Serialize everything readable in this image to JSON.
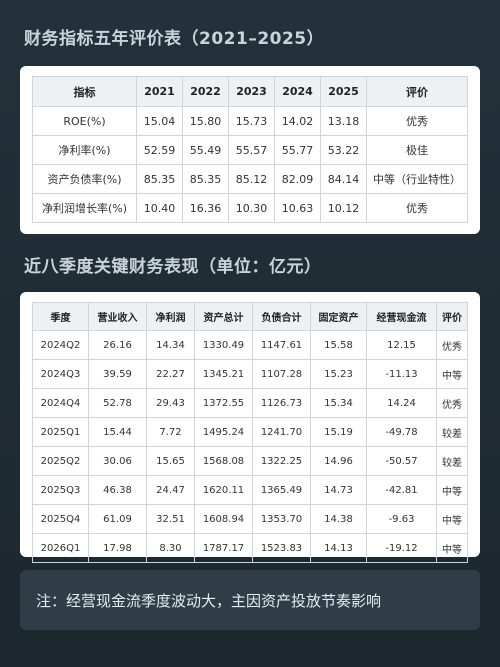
{
  "section1": {
    "title": "财务指标五年评价表（2021–2025）",
    "headers": [
      "指标",
      "2021",
      "2022",
      "2023",
      "2024",
      "2025",
      "评价"
    ],
    "rows": [
      [
        "ROE(%)",
        "15.04",
        "15.80",
        "15.73",
        "14.02",
        "13.18",
        "优秀"
      ],
      [
        "净利率(%)",
        "52.59",
        "55.49",
        "55.57",
        "55.77",
        "53.22",
        "极佳"
      ],
      [
        "资产负债率(%)",
        "85.35",
        "85.35",
        "85.12",
        "82.09",
        "84.14",
        "中等（行业特性）"
      ],
      [
        "净利润增长率(%)",
        "10.40",
        "16.36",
        "10.30",
        "10.63",
        "10.12",
        "优秀"
      ]
    ]
  },
  "section2": {
    "title": "近八季度关键财务表现（单位：亿元）",
    "headers": [
      "季度",
      "营业收入",
      "净利润",
      "资产总计",
      "负债合计",
      "固定资产",
      "经营现金流",
      "评价"
    ],
    "rows": [
      [
        "2024Q2",
        "26.16",
        "14.34",
        "1330.49",
        "1147.61",
        "15.58",
        "12.15",
        "优秀"
      ],
      [
        "2024Q3",
        "39.59",
        "22.27",
        "1345.21",
        "1107.28",
        "15.23",
        "-11.13",
        "中等"
      ],
      [
        "2024Q4",
        "52.78",
        "29.43",
        "1372.55",
        "1126.73",
        "15.34",
        "14.24",
        "优秀"
      ],
      [
        "2025Q1",
        "15.44",
        "7.72",
        "1495.24",
        "1241.70",
        "15.19",
        "-49.78",
        "较差"
      ],
      [
        "2025Q2",
        "30.06",
        "15.65",
        "1568.08",
        "1322.25",
        "14.96",
        "-50.57",
        "较差"
      ],
      [
        "2025Q3",
        "46.38",
        "24.47",
        "1620.11",
        "1365.49",
        "14.73",
        "-42.81",
        "中等"
      ],
      [
        "2025Q4",
        "61.09",
        "32.51",
        "1608.94",
        "1353.70",
        "14.38",
        "-9.63",
        "中等"
      ],
      [
        "2026Q1",
        "17.98",
        "8.30",
        "1787.17",
        "1523.83",
        "14.13",
        "-19.12",
        "中等"
      ]
    ]
  },
  "note": "注：经营现金流季度波动大，主因资产投放节奏影响"
}
